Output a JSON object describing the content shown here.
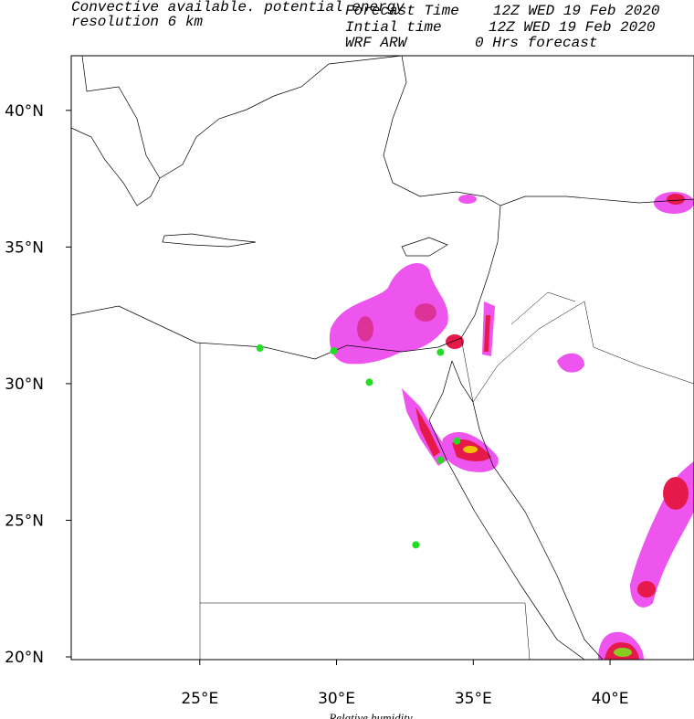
{
  "header": {
    "title": "Convective available. potential energy",
    "subtitle": "resolution 6 km",
    "forecast_label": "Forecast Time",
    "forecast_value": "12Z WED 19 Feb 2020",
    "initial_label": "Intial time",
    "initial_value": "12Z WED 19 Feb 2020",
    "model_label": "WRF ARW",
    "model_value": "0 Hrs forecast"
  },
  "footer": {
    "label": "Relative humidity"
  },
  "map": {
    "lon_range": [
      20.3,
      43.07
    ],
    "lat_range": [
      19.9,
      42.0
    ],
    "lon_ticks": [
      {
        "value": 25,
        "label": "25°E"
      },
      {
        "value": 30,
        "label": "30°E"
      },
      {
        "value": 35,
        "label": "35°E"
      },
      {
        "value": 40,
        "label": "40°E"
      }
    ],
    "lat_ticks": [
      {
        "value": 20,
        "label": "20°N"
      },
      {
        "value": 25,
        "label": "25°N"
      },
      {
        "value": 30,
        "label": "30°N"
      },
      {
        "value": 35,
        "label": "35°N"
      },
      {
        "value": 40,
        "label": "40°N"
      }
    ],
    "station_color": "#22dd22",
    "stations": [
      {
        "lon": 27.2,
        "lat": 31.3
      },
      {
        "lon": 29.9,
        "lat": 31.2
      },
      {
        "lon": 31.2,
        "lat": 30.05
      },
      {
        "lon": 33.8,
        "lat": 31.15
      },
      {
        "lon": 34.4,
        "lat": 27.9
      },
      {
        "lon": 33.8,
        "lat": 27.2
      },
      {
        "lon": 32.9,
        "lat": 24.1
      }
    ]
  }
}
